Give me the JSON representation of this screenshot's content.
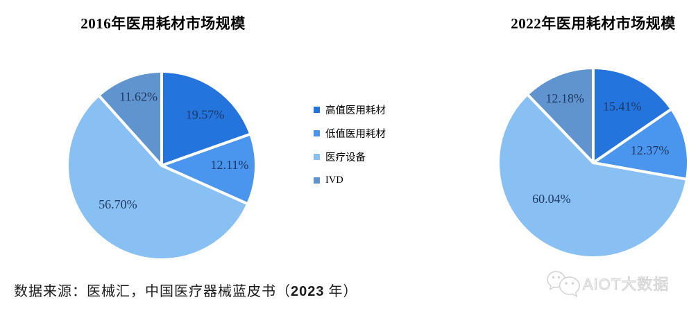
{
  "charts": [
    {
      "title": "2016年医用耗材市场规模"
    },
    {
      "title": "2022年医用耗材市场规模"
    }
  ],
  "legend": {
    "position": "center-between-pies",
    "items": [
      {
        "label": "高值医用耗材",
        "color": "#2374dc"
      },
      {
        "label": "低值医用耗材",
        "color": "#4a95ee"
      },
      {
        "label": "医疗设备",
        "color": "#88c0f4"
      },
      {
        "label": "IVD",
        "color": "#6094ce"
      }
    ]
  },
  "source": {
    "prefix": "数据来源：医械汇，中国医疗器械蓝皮书（",
    "year": "2023",
    "suffix": " 年）"
  },
  "watermark": {
    "text": "AIOT大数据",
    "icon": "wechat-chat-bubbles-icon"
  },
  "chart_data": [
    {
      "type": "pie",
      "title": "2016年医用耗材市场规模",
      "categories": [
        "高值医用耗材",
        "低值医用耗材",
        "医疗设备",
        "IVD"
      ],
      "values": [
        19.57,
        12.11,
        56.7,
        11.62
      ],
      "labels": [
        "19.57%",
        "12.11%",
        "56.70%",
        "11.62%"
      ],
      "colors": [
        "#2374dc",
        "#4a95ee",
        "#88c0f4",
        "#6094ce"
      ],
      "start_angle": 0,
      "direction": "clockwise",
      "slice_gap_color": "#ffffff",
      "label_color": "#1f3864",
      "label_placement": [
        {
          "angle": 40.3,
          "r": 0.71
        },
        {
          "angle": 89.4,
          "r": 0.72
        },
        {
          "angle": 228.4,
          "r": 0.62
        },
        {
          "angle": 341.4,
          "r": 0.77
        }
      ]
    },
    {
      "type": "pie",
      "title": "2022年医用耗材市场规模",
      "categories": [
        "高值医用耗材",
        "低值医用耗材",
        "医疗设备",
        "IVD"
      ],
      "values": [
        15.41,
        12.37,
        60.04,
        12.18
      ],
      "labels": [
        "15.41%",
        "12.37%",
        "60.04%",
        "12.18%"
      ],
      "colors": [
        "#2374dc",
        "#4a95ee",
        "#88c0f4",
        "#6094ce"
      ],
      "start_angle": 0,
      "direction": "clockwise",
      "slice_gap_color": "#ffffff",
      "label_color": "#1f3864",
      "label_placement": [
        {
          "angle": 27.1,
          "r": 0.67
        },
        {
          "angle": 77.6,
          "r": 0.61
        },
        {
          "angle": 229.1,
          "r": 0.58
        },
        {
          "angle": 336.2,
          "r": 0.74
        }
      ]
    }
  ]
}
